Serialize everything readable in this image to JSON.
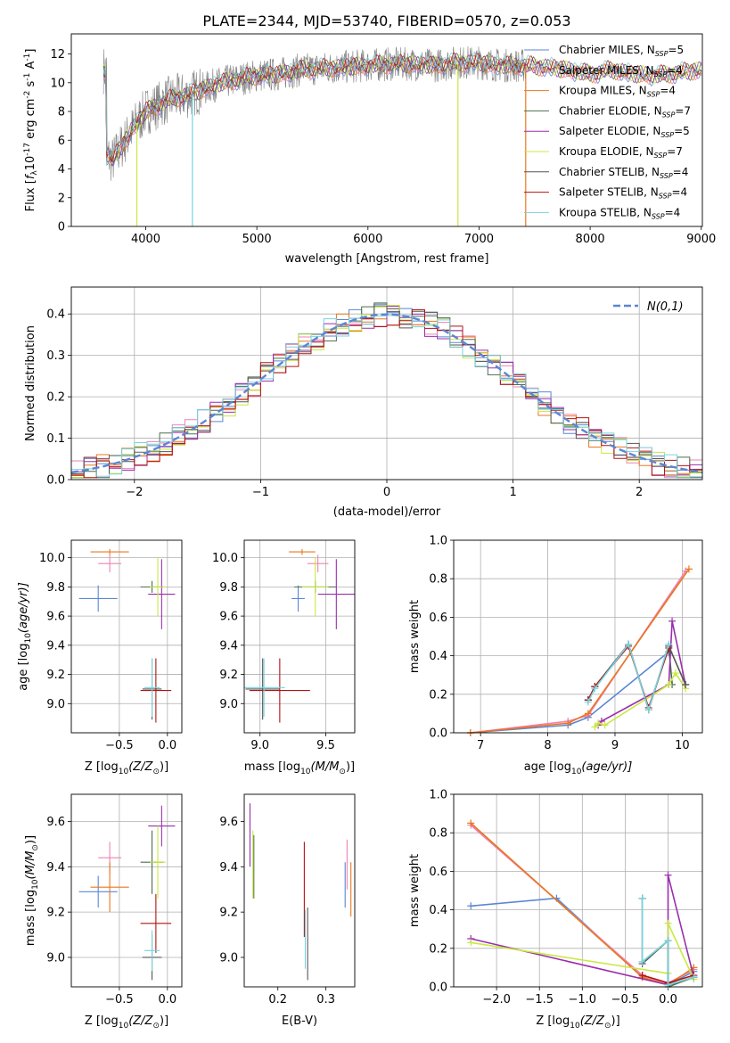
{
  "figure": {
    "title": "PLATE=2344, MJD=53740, FIBERID=0570, z=0.053",
    "series_names": [
      "Chabrier MILES, N_SSP=5",
      "Salpeter MILES, N_SSP=4",
      "Kroupa MILES, N_SSP=4",
      "Chabrier ELODIE, N_SSP=7",
      "Salpeter ELODIE, N_SSP=5",
      "Kroupa ELODIE, N_SSP=7",
      "Chabrier STELIB, N_SSP=4",
      "Salpeter STELIB, N_SSP=4",
      "Kroupa STELIB, N_SSP=4"
    ],
    "series_colors": [
      "#5b86d4",
      "#ee82b4",
      "#e9771f",
      "#4c6d4c",
      "#9a2fae",
      "#c9e840",
      "#555555",
      "#b31212",
      "#79d3de"
    ]
  },
  "chart_data": [
    {
      "id": "spectrum",
      "type": "line",
      "xlabel": "wavelength [Angstrom, rest frame]",
      "ylabel_text": "Flux [",
      "ylabel_math": "f",
      "ylabel_sub": "λ",
      "ylabel_rest": "10",
      "ylabel_exp": "-17",
      "ylabel_units": " erg cm",
      "ylabel_exp2": "-2",
      "ylabel_s": " s",
      "ylabel_exp3": "-1",
      "ylabel_A": " A",
      "ylabel_exp4": "-1",
      "ylabel_end": "]",
      "xlim": [
        3330,
        9010
      ],
      "ylim": [
        0,
        13.4
      ],
      "xticks": [
        "4000",
        "5000",
        "6000",
        "7000",
        "8000",
        "9000"
      ],
      "yticks": [
        "0",
        "2",
        "4",
        "6",
        "8",
        "10",
        "12"
      ],
      "legend": [
        {
          "base": "Chabrier MILES, N",
          "sub": "SSP",
          "tail": "=5"
        },
        {
          "base": "Salpeter MILES, N",
          "sub": "SSP",
          "tail": "=4"
        },
        {
          "base": "Kroupa MILES, N",
          "sub": "SSP",
          "tail": "=4"
        },
        {
          "base": "Chabrier ELODIE, N",
          "sub": "SSP",
          "tail": "=7"
        },
        {
          "base": "Salpeter ELODIE, N",
          "sub": "SSP",
          "tail": "=5"
        },
        {
          "base": "Kroupa ELODIE, N",
          "sub": "SSP",
          "tail": "=7"
        },
        {
          "base": "Chabrier STELIB, N",
          "sub": "SSP",
          "tail": "=4"
        },
        {
          "base": "Salpeter STELIB, N",
          "sub": "SSP",
          "tail": "=4"
        },
        {
          "base": "Kroupa STELIB, N",
          "sub": "SSP",
          "tail": "=4"
        }
      ],
      "legend_location": "right",
      "continuum_points": [
        [
          3650,
          5.0
        ],
        [
          3700,
          4.6
        ],
        [
          3800,
          5.8
        ],
        [
          3900,
          7.0
        ],
        [
          4000,
          8.0
        ],
        [
          4200,
          8.8
        ],
        [
          4400,
          9.2
        ],
        [
          4600,
          9.8
        ],
        [
          4800,
          10.2
        ],
        [
          5000,
          10.5
        ],
        [
          5200,
          10.6
        ],
        [
          5400,
          10.9
        ],
        [
          5600,
          11.0
        ],
        [
          5800,
          11.1
        ],
        [
          6000,
          11.2
        ],
        [
          6200,
          11.3
        ],
        [
          6400,
          11.3
        ],
        [
          6600,
          11.2
        ],
        [
          6800,
          11.4
        ],
        [
          7000,
          11.4
        ],
        [
          7200,
          11.2
        ],
        [
          7400,
          11.2
        ],
        [
          7600,
          11.1
        ],
        [
          7800,
          10.9
        ],
        [
          8000,
          10.6
        ],
        [
          8200,
          10.9
        ],
        [
          8400,
          10.6
        ],
        [
          8600,
          10.5
        ],
        [
          8800,
          10.7
        ],
        [
          9000,
          10.9
        ]
      ],
      "drops": [
        {
          "x": 3920,
          "series": 5
        },
        {
          "x": 4420,
          "series": 8
        },
        {
          "x": 6810,
          "series": 5
        },
        {
          "x": 7420,
          "series": 2
        }
      ],
      "grid": false
    },
    {
      "id": "residuals",
      "type": "histogram",
      "xlabel": "(data-model)/error",
      "ylabel": "Normed distribution",
      "xlim": [
        -2.5,
        2.5
      ],
      "ylim": [
        0,
        0.465
      ],
      "xticks": [
        "-2",
        "-1",
        "0",
        "1",
        "2"
      ],
      "yticks": [
        "0.0",
        "0.1",
        "0.2",
        "0.3",
        "0.4"
      ],
      "bin_width": 0.1,
      "reference_curve": {
        "label": "N(0,1)",
        "mean": 0,
        "sigma": 1,
        "style": "dashed",
        "color": "#5b86d4"
      },
      "legend_location": "top-right",
      "grid": true
    },
    {
      "id": "age_vs_Z",
      "type": "scatter",
      "xlabel_pre": "Z [log",
      "xlabel_sub": "10",
      "xlabel_post": "(Z/Z",
      "xlabel_sun": "⊙",
      "xlabel_end": ")]",
      "ylabel_pre": "age  [log",
      "ylabel_sub": "10",
      "ylabel_post": "(age/yr)]",
      "xlim": [
        -1.0,
        0.15
      ],
      "ylim": [
        8.8,
        10.12
      ],
      "xticks": [
        "-0.5",
        "0.0"
      ],
      "yticks": [
        "9.0",
        "9.2",
        "9.4",
        "9.6",
        "9.8",
        "10.0"
      ],
      "points": [
        {
          "series": 0,
          "x": -0.72,
          "y": 9.72,
          "xerr": 0.2,
          "yerr": 0.09
        },
        {
          "series": 1,
          "x": -0.6,
          "y": 9.96,
          "xerr": 0.12,
          "yerr": 0.06
        },
        {
          "series": 2,
          "x": -0.6,
          "y": 10.04,
          "xerr": 0.2,
          "yerr": 0.02
        },
        {
          "series": 3,
          "x": -0.16,
          "y": 9.8,
          "xerr": 0.12,
          "yerr": 0.04
        },
        {
          "series": 4,
          "x": -0.06,
          "y": 9.75,
          "xerr": 0.14,
          "yerr": 0.24
        },
        {
          "series": 5,
          "x": -0.1,
          "y": 9.8,
          "xerr": 0.08,
          "yerr": 0.2
        },
        {
          "series": 6,
          "x": -0.16,
          "y": 9.1,
          "xerr": 0.1,
          "yerr": 0.21
        },
        {
          "series": 7,
          "x": -0.12,
          "y": 9.09,
          "xerr": 0.16,
          "yerr": 0.22
        },
        {
          "series": 8,
          "x": -0.16,
          "y": 9.11,
          "xerr": 0.08,
          "yerr": 0.2
        }
      ],
      "grid": true
    },
    {
      "id": "age_vs_mass",
      "type": "scatter",
      "xlabel_pre": "mass [log",
      "xlabel_sub": "10",
      "xlabel_post": "(M/M",
      "xlabel_sun": "⊙",
      "xlabel_end": ")]",
      "xlim": [
        8.88,
        9.72
      ],
      "ylim": [
        8.8,
        10.12
      ],
      "xticks": [
        "9.0",
        "9.5"
      ],
      "yticks": [
        "9.0",
        "9.2",
        "9.4",
        "9.6",
        "9.8",
        "10.0"
      ],
      "points": [
        {
          "series": 0,
          "x": 9.29,
          "y": 9.72,
          "xerr": 0.05,
          "yerr": 0.09
        },
        {
          "series": 1,
          "x": 9.44,
          "y": 9.96,
          "xerr": 0.08,
          "yerr": 0.06
        },
        {
          "series": 2,
          "x": 9.32,
          "y": 10.04,
          "xerr": 0.1,
          "yerr": 0.02
        },
        {
          "series": 3,
          "x": 9.42,
          "y": 9.8,
          "xerr": 0.16,
          "yerr": 0.04
        },
        {
          "series": 4,
          "x": 9.58,
          "y": 9.75,
          "xerr": 0.14,
          "yerr": 0.24
        },
        {
          "series": 5,
          "x": 9.42,
          "y": 9.8,
          "xerr": 0.1,
          "yerr": 0.2
        },
        {
          "series": 6,
          "x": 9.02,
          "y": 9.1,
          "xerr": 0.13,
          "yerr": 0.21
        },
        {
          "series": 7,
          "x": 9.15,
          "y": 9.09,
          "xerr": 0.23,
          "yerr": 0.22
        },
        {
          "series": 8,
          "x": 9.03,
          "y": 9.11,
          "xerr": 0.16,
          "yerr": 0.2
        }
      ],
      "grid": true
    },
    {
      "id": "mass_vs_Z",
      "type": "scatter",
      "xlabel_pre": "Z [log",
      "xlabel_sub": "10",
      "xlabel_post": "(Z/Z",
      "xlabel_sun": "⊙",
      "xlabel_end": ")]",
      "ylabel_pre": "mass [log",
      "ylabel_sub": "10",
      "ylabel_post": "(M/M",
      "ylabel_sun": "⊙",
      "ylabel_end": ")]",
      "xlim": [
        -1.0,
        0.15
      ],
      "ylim": [
        8.87,
        9.72
      ],
      "xticks": [
        "-0.5",
        "0.0"
      ],
      "yticks": [
        "9.0",
        "9.2",
        "9.4",
        "9.6"
      ],
      "points": [
        {
          "series": 0,
          "x": -0.72,
          "y": 9.29,
          "xerr": 0.2,
          "yerr": 0.07
        },
        {
          "series": 1,
          "x": -0.6,
          "y": 9.44,
          "xerr": 0.12,
          "yerr": 0.07
        },
        {
          "series": 2,
          "x": -0.6,
          "y": 9.31,
          "xerr": 0.2,
          "yerr": 0.11
        },
        {
          "series": 3,
          "x": -0.16,
          "y": 9.42,
          "xerr": 0.12,
          "yerr": 0.14
        },
        {
          "series": 4,
          "x": -0.06,
          "y": 9.58,
          "xerr": 0.14,
          "yerr": 0.09
        },
        {
          "series": 5,
          "x": -0.1,
          "y": 9.42,
          "xerr": 0.08,
          "yerr": 0.16
        },
        {
          "series": 6,
          "x": -0.16,
          "y": 9.0,
          "xerr": 0.1,
          "yerr": 0.1
        },
        {
          "series": 7,
          "x": -0.12,
          "y": 9.15,
          "xerr": 0.16,
          "yerr": 0.13
        },
        {
          "series": 8,
          "x": -0.16,
          "y": 9.03,
          "xerr": 0.08,
          "yerr": 0.09
        }
      ],
      "grid": true
    },
    {
      "id": "mass_vs_EBV",
      "type": "scatter",
      "xlabel": "E(B-V)",
      "xlim": [
        0.13,
        0.36
      ],
      "ylim": [
        8.87,
        9.72
      ],
      "xticks": [
        "0.2",
        "0.3"
      ],
      "yticks": [
        "9.0",
        "9.2",
        "9.4",
        "9.6"
      ],
      "points": [
        {
          "series": 0,
          "x": 0.34,
          "y": 9.32,
          "yerr": 0.1
        },
        {
          "series": 1,
          "x": 0.344,
          "y": 9.41,
          "yerr": 0.11
        },
        {
          "series": 2,
          "x": 0.352,
          "y": 9.3,
          "yerr": 0.12
        },
        {
          "series": 3,
          "x": 0.15,
          "y": 9.4,
          "yerr": 0.14
        },
        {
          "series": 4,
          "x": 0.142,
          "y": 9.54,
          "yerr": 0.14
        },
        {
          "series": 5,
          "x": 0.148,
          "y": 9.41,
          "yerr": 0.15
        },
        {
          "series": 6,
          "x": 0.262,
          "y": 9.06,
          "yerr": 0.16
        },
        {
          "series": 7,
          "x": 0.255,
          "y": 9.3,
          "yerr": 0.21
        },
        {
          "series": 8,
          "x": 0.257,
          "y": 9.08,
          "yerr": 0.13
        }
      ],
      "grid": false
    },
    {
      "id": "weight_vs_age",
      "type": "line",
      "xlabel_pre": "age  [log",
      "xlabel_sub": "10",
      "xlabel_post": "(age/yr)]",
      "ylabel": "mass weight",
      "xlim": [
        6.6,
        10.3
      ],
      "ylim": [
        0,
        1.0
      ],
      "xticks": [
        "7",
        "8",
        "9",
        "10"
      ],
      "yticks": [
        "0.0",
        "0.2",
        "0.4",
        "0.6",
        "0.8",
        "1.0"
      ],
      "series": [
        {
          "series": 0,
          "x": [
            6.85,
            8.3,
            8.6,
            9.8
          ],
          "y": [
            0.0,
            0.04,
            0.08,
            0.42
          ]
        },
        {
          "series": 1,
          "x": [
            6.85,
            8.3,
            8.6,
            10.05
          ],
          "y": [
            0.0,
            0.06,
            0.09,
            0.84
          ]
        },
        {
          "series": 2,
          "x": [
            6.85,
            8.3,
            8.6,
            10.1
          ],
          "y": [
            0.0,
            0.05,
            0.1,
            0.85
          ]
        },
        {
          "series": 3,
          "x": [
            8.6,
            8.7,
            9.2,
            9.5,
            9.8,
            9.85
          ],
          "y": [
            0.17,
            0.24,
            0.46,
            0.12,
            0.45,
            0.25
          ]
        },
        {
          "series": 4,
          "x": [
            8.75,
            8.8,
            9.8,
            9.85,
            10.05
          ],
          "y": [
            0.04,
            0.06,
            0.25,
            0.58,
            0.25
          ]
        },
        {
          "series": 5,
          "x": [
            8.7,
            8.75,
            8.85,
            9.8,
            9.9,
            10.05
          ],
          "y": [
            0.03,
            0.05,
            0.04,
            0.25,
            0.31,
            0.23
          ]
        },
        {
          "series": 6,
          "x": [
            8.6,
            8.7,
            9.2,
            9.5,
            9.8,
            10.05
          ],
          "y": [
            0.17,
            0.24,
            0.46,
            0.12,
            0.45,
            0.25
          ]
        },
        {
          "series": 7,
          "x": [
            8.6,
            8.7,
            9.2,
            9.5,
            9.8
          ],
          "y": [
            0.17,
            0.24,
            0.45,
            0.13,
            0.44
          ]
        },
        {
          "series": 8,
          "x": [
            8.6,
            8.7,
            9.2,
            9.5,
            9.8
          ],
          "y": [
            0.16,
            0.23,
            0.46,
            0.12,
            0.46
          ]
        }
      ],
      "grid": true
    },
    {
      "id": "weight_vs_Z",
      "type": "line",
      "xlabel_pre": "Z [log",
      "xlabel_sub": "10",
      "xlabel_post": "(Z/Z",
      "xlabel_sun": "⊙",
      "xlabel_end": ")]",
      "ylabel": "mass weight",
      "xlim": [
        -2.5,
        0.4
      ],
      "ylim": [
        0,
        1.0
      ],
      "xticks": [
        "-2.0",
        "-1.5",
        "-1.0",
        "-0.5",
        "0.0"
      ],
      "yticks": [
        "0.0",
        "0.2",
        "0.4",
        "0.6",
        "0.8",
        "1.0"
      ],
      "series": [
        {
          "series": 0,
          "x": [
            -2.3,
            -1.3,
            -0.3,
            0.0,
            0.3
          ],
          "y": [
            0.42,
            0.46,
            0.05,
            0.01,
            0.08
          ]
        },
        {
          "series": 1,
          "x": [
            -2.3,
            -0.3,
            0.0,
            0.3
          ],
          "y": [
            0.84,
            0.06,
            0.02,
            0.09
          ]
        },
        {
          "series": 2,
          "x": [
            -2.3,
            -0.3,
            0.0,
            0.3
          ],
          "y": [
            0.85,
            0.05,
            0.01,
            0.1
          ]
        },
        {
          "series": 3,
          "x": [
            -0.3,
            -0.3,
            0.0,
            0.0,
            0.3
          ],
          "y": [
            0.46,
            0.13,
            0.24,
            0.0,
            0.05
          ]
        },
        {
          "series": 4,
          "x": [
            -2.3,
            0.0,
            0.0,
            0.3
          ],
          "y": [
            0.25,
            0.01,
            0.58,
            0.05
          ]
        },
        {
          "series": 5,
          "x": [
            -2.3,
            0.0,
            0.0,
            0.3
          ],
          "y": [
            0.23,
            0.07,
            0.33,
            0.04
          ]
        },
        {
          "series": 6,
          "x": [
            -0.3,
            -0.3,
            0.0,
            0.0,
            0.3
          ],
          "y": [
            0.46,
            0.12,
            0.24,
            0.01,
            0.05
          ]
        },
        {
          "series": 7,
          "x": [
            -0.3,
            0.0,
            0.3
          ],
          "y": [
            0.06,
            0.02,
            0.06
          ]
        },
        {
          "series": 8,
          "x": [
            -0.3,
            -0.3,
            0.0,
            0.0,
            0.3
          ],
          "y": [
            0.46,
            0.13,
            0.24,
            0.01,
            0.05
          ]
        }
      ],
      "grid": true
    }
  ]
}
